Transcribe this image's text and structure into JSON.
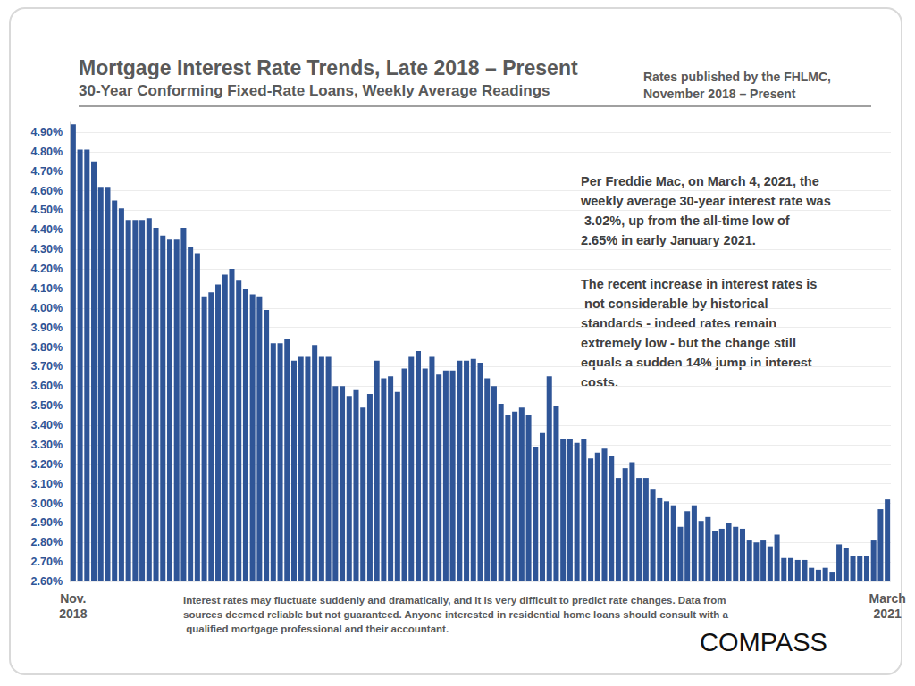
{
  "chart_data": {
    "type": "bar",
    "title": "Mortgage Interest Rate Trends, Late 2018 – Present",
    "subtitle": "30-Year Conforming Fixed-Rate Loans, Weekly Average Readings",
    "source": "Rates published by the FHLMC,\nNovember 2018 – Present",
    "annotations": [
      "Per Freddie Mac, on March 4, 2021, the weekly average 30-year interest rate was 3.02%, up from the all-time low of 2.65% in early January 2021.",
      "The recent increase in interest rates is not considerable by historical standards - indeed rates remain extremely low - but the change still equals a sudden 14% jump in interest costs."
    ],
    "footnote": "Interest rates may fluctuate suddenly and dramatically, and it is very difficult to predict rate changes. Data from sources deemed reliable but not guaranteed. Anyone interested in residential home loans should consult with a qualified mortgage professional and their accountant.",
    "logo": "COMPASS",
    "categories": [
      "Nov.\n2018",
      null,
      null,
      null,
      null,
      null,
      null,
      null,
      null,
      null,
      null,
      null,
      null,
      null,
      null,
      null,
      null,
      null,
      null,
      null,
      null,
      null,
      null,
      null,
      null,
      null,
      null,
      null,
      null,
      null,
      null,
      null,
      null,
      null,
      null,
      null,
      null,
      null,
      null,
      null,
      null,
      null,
      null,
      null,
      null,
      null,
      null,
      null,
      null,
      null,
      null,
      null,
      null,
      null,
      null,
      null,
      null,
      null,
      null,
      null,
      null,
      null,
      null,
      null,
      null,
      null,
      null,
      null,
      null,
      null,
      null,
      null,
      null,
      null,
      null,
      null,
      null,
      null,
      null,
      null,
      null,
      null,
      null,
      null,
      null,
      null,
      null,
      null,
      null,
      null,
      null,
      null,
      null,
      null,
      null,
      null,
      null,
      null,
      null,
      null,
      null,
      null,
      null,
      null,
      null,
      null,
      null,
      null,
      null,
      null,
      null,
      null,
      null,
      null,
      null,
      null,
      null,
      null,
      "March\n2021"
    ],
    "values": [
      4.94,
      4.81,
      4.81,
      4.75,
      4.62,
      4.62,
      4.55,
      4.51,
      4.45,
      4.45,
      4.45,
      4.46,
      4.41,
      4.37,
      4.35,
      4.35,
      4.41,
      4.31,
      4.28,
      4.06,
      4.08,
      4.12,
      4.17,
      4.2,
      4.14,
      4.1,
      4.07,
      4.06,
      3.99,
      3.82,
      3.82,
      3.84,
      3.73,
      3.75,
      3.75,
      3.81,
      3.75,
      3.75,
      3.6,
      3.6,
      3.55,
      3.58,
      3.49,
      3.56,
      3.73,
      3.64,
      3.65,
      3.57,
      3.69,
      3.75,
      3.78,
      3.69,
      3.75,
      3.66,
      3.68,
      3.68,
      3.73,
      3.73,
      3.74,
      3.72,
      3.64,
      3.6,
      3.51,
      3.45,
      3.47,
      3.49,
      3.45,
      3.29,
      3.36,
      3.65,
      3.5,
      3.33,
      3.33,
      3.31,
      3.33,
      3.23,
      3.26,
      3.28,
      3.24,
      3.13,
      3.18,
      3.21,
      3.13,
      3.13,
      3.07,
      3.03,
      3.01,
      2.99,
      2.88,
      2.96,
      2.99,
      2.91,
      2.93,
      2.86,
      2.87,
      2.9,
      2.88,
      2.87,
      2.81,
      2.8,
      2.81,
      2.78,
      2.84,
      2.72,
      2.72,
      2.71,
      2.71,
      2.67,
      2.66,
      2.67,
      2.65,
      2.79,
      2.77,
      2.73,
      2.73,
      2.73,
      2.81,
      2.97,
      3.02
    ],
    "color": "#2f5597",
    "ylim": [
      2.6,
      4.95
    ],
    "yticks": [
      {
        "value": 2.6,
        "label": "2.60%"
      },
      {
        "value": 2.7,
        "label": "2.70%"
      },
      {
        "value": 2.8,
        "label": "2.80%"
      },
      {
        "value": 2.9,
        "label": "2.90%"
      },
      {
        "value": 3.0,
        "label": "3.00%"
      },
      {
        "value": 3.1,
        "label": "3.10%"
      },
      {
        "value": 3.2,
        "label": "3.20%"
      },
      {
        "value": 3.3,
        "label": "3.30%"
      },
      {
        "value": 3.4,
        "label": "3.40%"
      },
      {
        "value": 3.5,
        "label": "3.50%"
      },
      {
        "value": 3.6,
        "label": "3.60%"
      },
      {
        "value": 3.7,
        "label": "3.70%"
      },
      {
        "value": 3.8,
        "label": "3.80%"
      },
      {
        "value": 3.9,
        "label": "3.90%"
      },
      {
        "value": 4.0,
        "label": "4.00%"
      },
      {
        "value": 4.1,
        "label": "4.10%"
      },
      {
        "value": 4.2,
        "label": "4.20%"
      },
      {
        "value": 4.3,
        "label": "4.30%"
      },
      {
        "value": 4.4,
        "label": "4.40%"
      },
      {
        "value": 4.5,
        "label": "4.50%"
      },
      {
        "value": 4.6,
        "label": "4.60%"
      },
      {
        "value": 4.7,
        "label": "4.70%"
      },
      {
        "value": 4.8,
        "label": "4.80%"
      },
      {
        "value": 4.9,
        "label": "4.90%"
      }
    ],
    "grid": true
  }
}
